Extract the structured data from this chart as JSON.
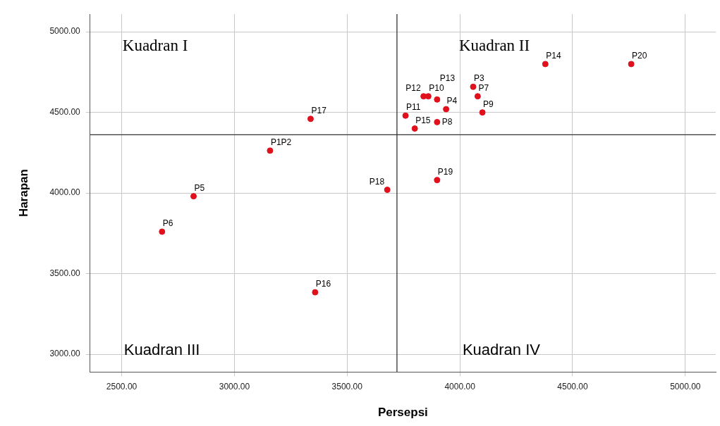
{
  "chart_data": {
    "type": "scatter",
    "xlabel": "Persepsi",
    "ylabel": "Harapan",
    "x": [
      3158,
      4059,
      3939,
      2819,
      2679,
      4079,
      3899,
      4100,
      3860,
      3759,
      3839,
      3899,
      4379,
      3800,
      3358,
      3338,
      3678,
      3899,
      4760
    ],
    "values": [
      4263,
      4659,
      4520,
      3980,
      3760,
      4600,
      4440,
      4500,
      4600,
      4480,
      4600,
      4580,
      4800,
      4400,
      3384,
      4460,
      4020,
      4080,
      4800
    ],
    "color": "#e0101c",
    "marker": "circle",
    "grid": true,
    "legend": false,
    "xlim": [
      2360,
      5135
    ],
    "ylim": [
      2890,
      5110
    ],
    "xticks": [
      {
        "value": 2500,
        "label": "2500.00"
      },
      {
        "value": 3000,
        "label": "3000.00"
      },
      {
        "value": 3500,
        "label": "3500.00"
      },
      {
        "value": 4000,
        "label": "4000.00"
      },
      {
        "value": 4500,
        "label": "4500.00"
      },
      {
        "value": 5000,
        "label": "5000.00"
      }
    ],
    "yticks": [
      {
        "value": 3000,
        "label": "3000.00"
      },
      {
        "value": 3500,
        "label": "3500.00"
      },
      {
        "value": 4000,
        "label": "4000.00"
      },
      {
        "value": 4500,
        "label": "4500.00"
      },
      {
        "value": 5000,
        "label": "5000.00"
      }
    ],
    "ref_lines": [
      {
        "axis": "x",
        "value": 3721,
        "color": "#333333"
      },
      {
        "axis": "y",
        "value": 4361,
        "color": "#333333"
      }
    ],
    "annotations": [
      "Kuadran I",
      "Kuadran II",
      "Kuadran III",
      "Kuadran IV",
      {
        "text": "P1P2",
        "x": 3158,
        "y": 4263
      },
      {
        "text": "P3",
        "x": 4059,
        "y": 4659
      },
      {
        "text": "P4",
        "x": 3939,
        "y": 4520
      },
      {
        "text": "P5",
        "x": 2819,
        "y": 3980
      },
      {
        "text": "P6",
        "x": 2679,
        "y": 3760
      },
      {
        "text": "P7",
        "x": 4079,
        "y": 4600
      },
      {
        "text": "P8",
        "x": 3899,
        "y": 4440
      },
      {
        "text": "P9",
        "x": 4100,
        "y": 4500
      },
      {
        "text": "P10",
        "x": 3860,
        "y": 4600
      },
      {
        "text": "P11",
        "x": 3759,
        "y": 4480
      },
      {
        "text": "P12",
        "x": 3839,
        "y": 4600
      },
      {
        "text": "P13",
        "x": 3899,
        "y": 4580
      },
      {
        "text": "P14",
        "x": 4379,
        "y": 4800
      },
      {
        "text": "P15",
        "x": 3800,
        "y": 4400
      },
      {
        "text": "P16",
        "x": 3358,
        "y": 3384
      },
      {
        "text": "P17",
        "x": 3338,
        "y": 4460
      },
      {
        "text": "P18",
        "x": 3678,
        "y": 4020
      },
      {
        "text": "P19",
        "x": 3899,
        "y": 4080
      },
      {
        "text": "P20",
        "x": 4760,
        "y": 4800
      }
    ]
  }
}
